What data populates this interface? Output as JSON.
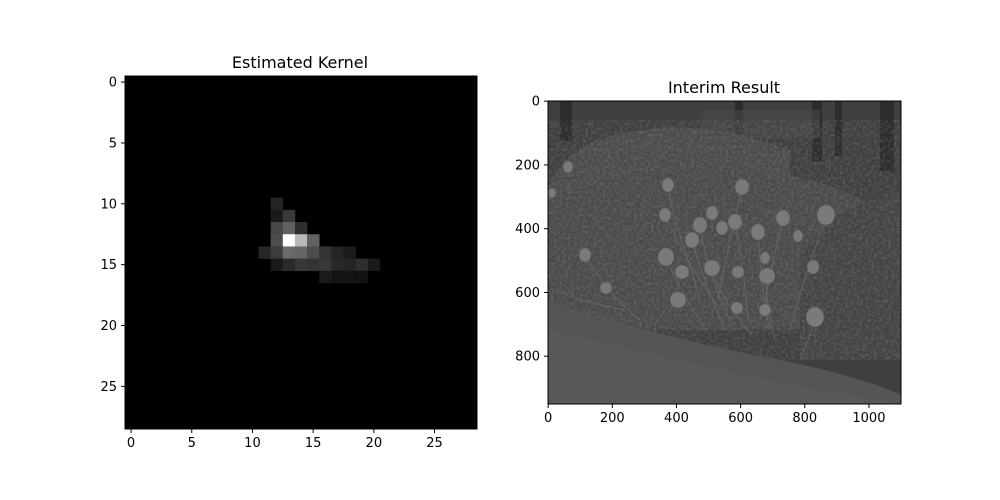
{
  "chart_data": [
    {
      "type": "heatmap",
      "title": "Estimated Kernel",
      "colormap": "gray",
      "grid": false,
      "shape": [
        29,
        29
      ],
      "xlim": [
        -0.5,
        28.5
      ],
      "ylim": [
        28.5,
        -0.5
      ],
      "x_ticks": [
        0,
        5,
        10,
        15,
        20,
        25
      ],
      "y_ticks": [
        0,
        5,
        10,
        15,
        20,
        25
      ],
      "background_value": 0.0,
      "nonzero_cells": [
        {
          "row": 10,
          "col": 12,
          "value": 0.14
        },
        {
          "row": 11,
          "col": 12,
          "value": 0.1
        },
        {
          "row": 11,
          "col": 13,
          "value": 0.22
        },
        {
          "row": 12,
          "col": 12,
          "value": 0.28
        },
        {
          "row": 12,
          "col": 13,
          "value": 0.38
        },
        {
          "row": 12,
          "col": 14,
          "value": 0.18
        },
        {
          "row": 13,
          "col": 12,
          "value": 0.3
        },
        {
          "row": 13,
          "col": 13,
          "value": 1.0
        },
        {
          "row": 13,
          "col": 14,
          "value": 0.72
        },
        {
          "row": 13,
          "col": 15,
          "value": 0.38
        },
        {
          "row": 14,
          "col": 11,
          "value": 0.15
        },
        {
          "row": 14,
          "col": 12,
          "value": 0.24
        },
        {
          "row": 14,
          "col": 13,
          "value": 0.42
        },
        {
          "row": 14,
          "col": 14,
          "value": 0.4
        },
        {
          "row": 14,
          "col": 15,
          "value": 0.3
        },
        {
          "row": 14,
          "col": 16,
          "value": 0.2
        },
        {
          "row": 14,
          "col": 17,
          "value": 0.14
        },
        {
          "row": 14,
          "col": 18,
          "value": 0.1
        },
        {
          "row": 15,
          "col": 12,
          "value": 0.1
        },
        {
          "row": 15,
          "col": 13,
          "value": 0.17
        },
        {
          "row": 15,
          "col": 14,
          "value": 0.22
        },
        {
          "row": 15,
          "col": 15,
          "value": 0.2
        },
        {
          "row": 15,
          "col": 16,
          "value": 0.22
        },
        {
          "row": 15,
          "col": 17,
          "value": 0.16
        },
        {
          "row": 15,
          "col": 18,
          "value": 0.14
        },
        {
          "row": 15,
          "col": 19,
          "value": 0.18
        },
        {
          "row": 15,
          "col": 20,
          "value": 0.1
        },
        {
          "row": 16,
          "col": 16,
          "value": 0.1
        },
        {
          "row": 16,
          "col": 17,
          "value": 0.08
        },
        {
          "row": 16,
          "col": 18,
          "value": 0.08
        },
        {
          "row": 16,
          "col": 19,
          "value": 0.07
        }
      ]
    },
    {
      "type": "image",
      "title": "Interim Result",
      "description": "grayscale photograph of trimmed hedges with tulips",
      "xlim": [
        -0.5,
        1100
      ],
      "ylim": [
        950,
        -0.5
      ],
      "x_ticks": [
        0,
        200,
        400,
        600,
        800,
        1000
      ],
      "y_ticks": [
        0,
        200,
        400,
        600,
        800
      ]
    }
  ]
}
